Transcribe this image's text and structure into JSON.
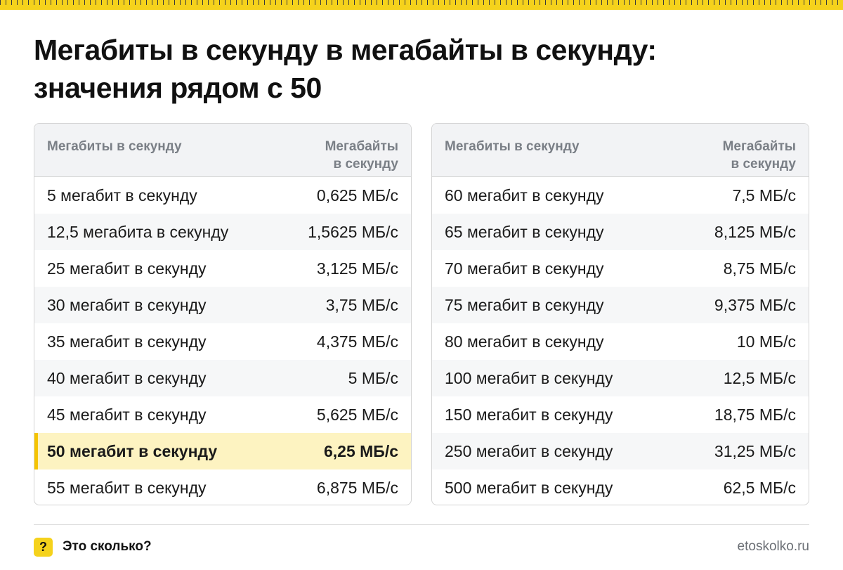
{
  "title": {
    "line1": "Мегабиты в секунду в мегабайты в секунду:",
    "line2": "значения рядом с 50"
  },
  "tables": {
    "left": {
      "header": {
        "col1": "Мегабиты в секунду",
        "col2_line1": "Мегабайты",
        "col2_line2": "в секунду"
      },
      "rows": [
        {
          "mbit": "5 мегабит в секунду",
          "mbyte": "0,625 МБ/с"
        },
        {
          "mbit": "12,5 мегабита в секунду",
          "mbyte": "1,5625 МБ/с"
        },
        {
          "mbit": "25 мегабит в секунду",
          "mbyte": "3,125 МБ/с"
        },
        {
          "mbit": "30 мегабит в секунду",
          "mbyte": "3,75 МБ/с"
        },
        {
          "mbit": "35 мегабит в секунду",
          "mbyte": "4,375 МБ/с"
        },
        {
          "mbit": "40 мегабит в секунду",
          "mbyte": "5 МБ/с"
        },
        {
          "mbit": "45 мегабит в секунду",
          "mbyte": "5,625 МБ/с"
        },
        {
          "mbit": "50 мегабит в секунду",
          "mbyte": "6,25 МБ/с",
          "highlighted": true
        },
        {
          "mbit": "55 мегабит в секунду",
          "mbyte": "6,875 МБ/с"
        }
      ]
    },
    "right": {
      "header": {
        "col1": "Мегабиты в секунду",
        "col2_line1": "Мегабайты",
        "col2_line2": "в секунду"
      },
      "rows": [
        {
          "mbit": "60 мегабит в секунду",
          "mbyte": "7,5 МБ/с"
        },
        {
          "mbit": "65 мегабит в секунду",
          "mbyte": "8,125 МБ/с"
        },
        {
          "mbit": "70 мегабит в секунду",
          "mbyte": "8,75 МБ/с"
        },
        {
          "mbit": "75 мегабит в секунду",
          "mbyte": "9,375 МБ/с"
        },
        {
          "mbit": "80 мегабит в секунду",
          "mbyte": "10 МБ/с"
        },
        {
          "mbit": "100 мегабит в секунду",
          "mbyte": "12,5 МБ/с"
        },
        {
          "mbit": "150 мегабит в секунду",
          "mbyte": "18,75 МБ/с"
        },
        {
          "mbit": "250 мегабит в секунду",
          "mbyte": "31,25 МБ/с"
        },
        {
          "mbit": "500 мегабит в секунду",
          "mbyte": "62,5 МБ/с"
        }
      ]
    }
  },
  "footer": {
    "logo_glyph": "?",
    "brand": "Это сколько?",
    "site": "etoskolko.ru"
  },
  "colors": {
    "accent_yellow": "#f5d21c",
    "highlight_row": "#fdf3c1",
    "highlight_bar": "#f5c400",
    "header_bg": "#f2f3f5",
    "header_text": "#7a7f86"
  }
}
